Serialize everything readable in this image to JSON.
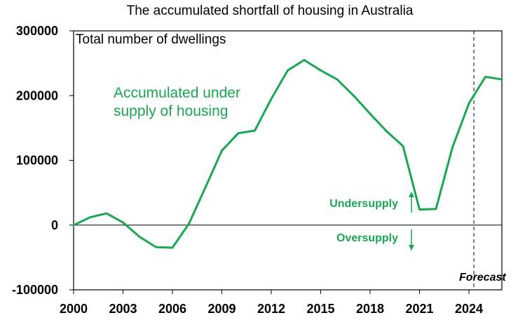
{
  "chart_data": {
    "type": "line",
    "title": "The accumulated shortfall of housing in Australia",
    "ylabel": "Total number of dwellings",
    "xlim": [
      2000,
      2026
    ],
    "ylim": [
      -100000,
      300000
    ],
    "x_ticks": [
      2000,
      2003,
      2006,
      2009,
      2012,
      2015,
      2018,
      2021,
      2024
    ],
    "y_ticks": [
      -100000,
      0,
      100000,
      200000,
      300000
    ],
    "grid": false,
    "series": [
      {
        "name": "Accumulated under supply of housing",
        "color": "#1aa653",
        "x": [
          2000,
          2001,
          2002,
          2003,
          2004,
          2005,
          2006,
          2007,
          2008,
          2009,
          2010,
          2011,
          2012,
          2013,
          2014,
          2015,
          2016,
          2017,
          2018,
          2019,
          2020,
          2021,
          2022,
          2023,
          2024,
          2025,
          2026
        ],
        "y": [
          0,
          12000,
          18000,
          4000,
          -18000,
          -34000,
          -35000,
          2000,
          58000,
          115000,
          142000,
          146000,
          195000,
          239000,
          255000,
          239000,
          225000,
          200000,
          172000,
          145000,
          122000,
          24000,
          25000,
          120000,
          188000,
          229000,
          225000
        ]
      }
    ],
    "annotations": {
      "undersupply": "Undersupply",
      "oversupply": "Oversupply",
      "forecast": "Forecast",
      "forecast_x": 2024.3,
      "annotation_color": "#1aa653"
    }
  }
}
